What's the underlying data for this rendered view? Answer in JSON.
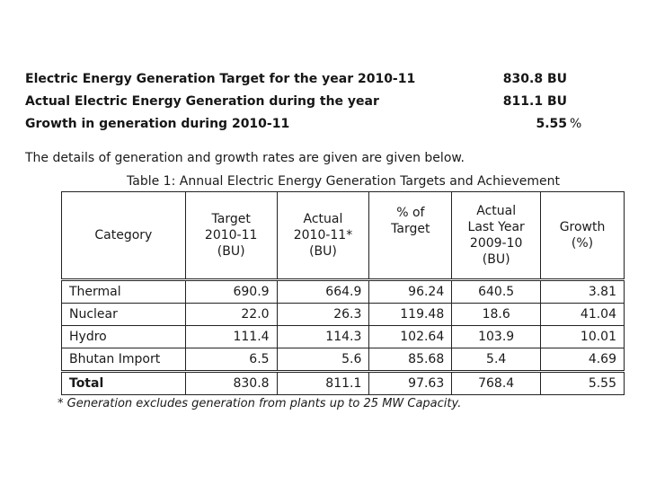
{
  "summary": [
    {
      "label": "Electric Energy Generation Target for the year 2010-11",
      "value": "830.8",
      "unit": "BU"
    },
    {
      "label": "Actual Electric Energy Generation during the year",
      "value": "811.1",
      "unit": "BU"
    },
    {
      "label": "Growth in generation during 2010-11",
      "value": "5.55",
      "unit": "%"
    }
  ],
  "intro": "The details of generation and growth rates are given are given below.",
  "caption": "Table 1: Annual Electric Energy Generation Targets and Achievement",
  "table": {
    "headers": [
      {
        "lines": [
          "Category"
        ]
      },
      {
        "lines": [
          "Target",
          "2010-11",
          "(BU)"
        ]
      },
      {
        "lines": [
          "Actual",
          "2010-11*",
          "(BU)"
        ]
      },
      {
        "lines": [
          "% of",
          "Target"
        ]
      },
      {
        "lines": [
          "Actual",
          "Last Year",
          "2009-10",
          "(BU)"
        ]
      },
      {
        "lines": [
          "Growth",
          "(%)"
        ]
      }
    ],
    "rows": [
      {
        "category": "Thermal",
        "target": "690.9",
        "actual": "664.9",
        "pct": "96.24",
        "last": "640.5",
        "growth": "3.81"
      },
      {
        "category": "Nuclear",
        "target": "22.0",
        "actual": "26.3",
        "pct": "119.48",
        "last": "18.6",
        "growth": "41.04"
      },
      {
        "category": "Hydro",
        "target": "111.4",
        "actual": "114.3",
        "pct": "102.64",
        "last": "103.9",
        "growth": "10.01"
      },
      {
        "category": "Bhutan Import",
        "target": "6.5",
        "actual": "5.6",
        "pct": "85.68",
        "last": "5.4",
        "growth": "4.69"
      },
      {
        "category": "Total",
        "target": "830.8",
        "actual": "811.1",
        "pct": "97.63",
        "last": "768.4",
        "growth": "5.55"
      }
    ]
  },
  "footnote": "* Generation excludes generation from plants up to 25 MW Capacity."
}
